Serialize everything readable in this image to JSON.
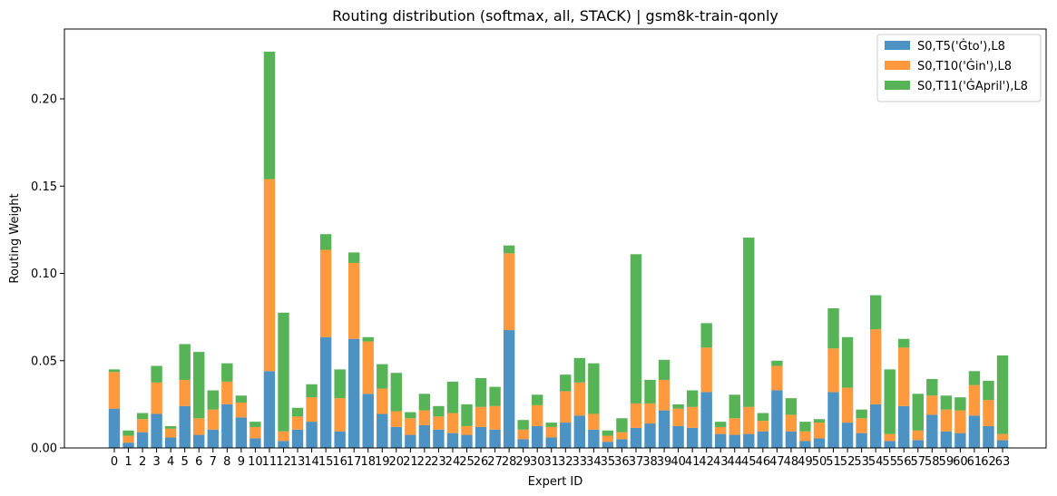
{
  "chart_data": {
    "type": "bar",
    "stacked": true,
    "title": "Routing distribution (softmax, all, STACK) | gsm8k-train-qonly",
    "xlabel": "Expert ID",
    "ylabel": "Routing Weight",
    "ylim": [
      0,
      0.24
    ],
    "yticks": [
      "0.00",
      "0.05",
      "0.10",
      "0.15",
      "0.20"
    ],
    "yticks_values": [
      0,
      0.05,
      0.1,
      0.15,
      0.2
    ],
    "grid": false,
    "legend_position": "top-right",
    "categories": [
      "0",
      "1",
      "2",
      "3",
      "4",
      "5",
      "6",
      "7",
      "8",
      "9",
      "10",
      "11",
      "12",
      "13",
      "14",
      "15",
      "16",
      "17",
      "18",
      "19",
      "20",
      "21",
      "22",
      "23",
      "24",
      "25",
      "26",
      "27",
      "28",
      "29",
      "30",
      "31",
      "32",
      "33",
      "34",
      "35",
      "36",
      "37",
      "38",
      "39",
      "40",
      "41",
      "42",
      "43",
      "44",
      "45",
      "46",
      "47",
      "48",
      "49",
      "50",
      "51",
      "52",
      "53",
      "54",
      "55",
      "56",
      "57",
      "58",
      "59",
      "60",
      "61",
      "62",
      "63"
    ],
    "series": [
      {
        "name": "S0,T5('Ġto'),L8",
        "color": "#1f77b4",
        "values": [
          0.0225,
          0.003,
          0.009,
          0.0195,
          0.006,
          0.024,
          0.0075,
          0.0105,
          0.025,
          0.0175,
          0.0055,
          0.044,
          0.004,
          0.0105,
          0.015,
          0.0635,
          0.0095,
          0.0625,
          0.031,
          0.0195,
          0.012,
          0.0075,
          0.013,
          0.0105,
          0.0085,
          0.0075,
          0.012,
          0.0105,
          0.0675,
          0.005,
          0.0125,
          0.006,
          0.0145,
          0.0185,
          0.0105,
          0.0035,
          0.005,
          0.0115,
          0.014,
          0.0215,
          0.0125,
          0.0115,
          0.032,
          0.008,
          0.0075,
          0.008,
          0.0095,
          0.033,
          0.0095,
          0.004,
          0.0055,
          0.032,
          0.0145,
          0.0085,
          0.025,
          0.004,
          0.024,
          0.0045,
          0.019,
          0.0095,
          0.0085,
          0.0185,
          0.0125,
          0.0045
        ]
      },
      {
        "name": "S0,T10('Ġin'),L8",
        "color": "#ff7f0e",
        "values": [
          0.021,
          0.004,
          0.0075,
          0.018,
          0.005,
          0.015,
          0.0095,
          0.0115,
          0.013,
          0.0085,
          0.0065,
          0.11,
          0.0055,
          0.0075,
          0.014,
          0.05,
          0.019,
          0.0435,
          0.03,
          0.0145,
          0.009,
          0.0095,
          0.0085,
          0.0075,
          0.0115,
          0.005,
          0.0115,
          0.0135,
          0.044,
          0.0055,
          0.012,
          0.006,
          0.018,
          0.019,
          0.009,
          0.0035,
          0.004,
          0.014,
          0.0115,
          0.0175,
          0.01,
          0.012,
          0.0255,
          0.004,
          0.0095,
          0.0155,
          0.006,
          0.014,
          0.0095,
          0.0055,
          0.009,
          0.025,
          0.02,
          0.0085,
          0.043,
          0.004,
          0.0335,
          0.0055,
          0.011,
          0.0125,
          0.013,
          0.0175,
          0.015,
          0.0035
        ]
      },
      {
        "name": "S0,T11('ĠApril'),L8",
        "color": "#2ca02c",
        "values": [
          0.0015,
          0.003,
          0.0035,
          0.0095,
          0.0015,
          0.0205,
          0.038,
          0.011,
          0.0105,
          0.004,
          0.003,
          0.073,
          0.068,
          0.005,
          0.0075,
          0.009,
          0.0165,
          0.006,
          0.0025,
          0.014,
          0.022,
          0.0035,
          0.0095,
          0.006,
          0.018,
          0.0125,
          0.0165,
          0.011,
          0.0045,
          0.0055,
          0.006,
          0.0025,
          0.0095,
          0.014,
          0.029,
          0.003,
          0.008,
          0.0855,
          0.0135,
          0.0115,
          0.0025,
          0.0095,
          0.014,
          0.003,
          0.0135,
          0.097,
          0.0045,
          0.003,
          0.0095,
          0.0055,
          0.002,
          0.023,
          0.029,
          0.005,
          0.0195,
          0.037,
          0.005,
          0.021,
          0.0095,
          0.008,
          0.0075,
          0.008,
          0.011,
          0.045
        ]
      }
    ]
  }
}
